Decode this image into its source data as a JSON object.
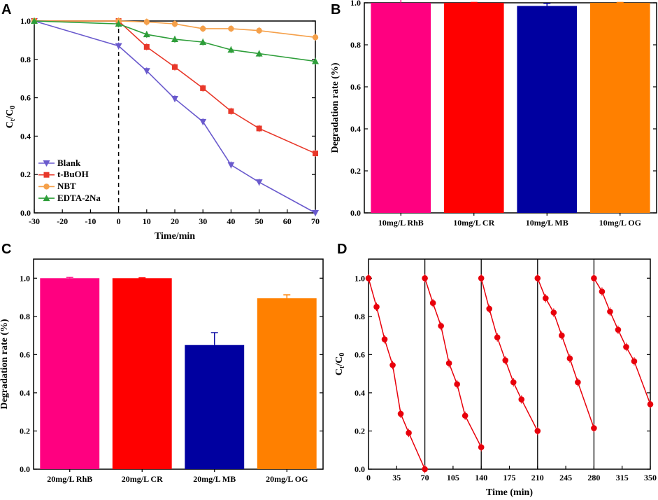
{
  "chart_data": [
    {
      "panel": "A",
      "type": "line",
      "xlabel": "Time/min",
      "ylabel": "Ct/C0",
      "ylabel_main": "C",
      "ylabel_sub1": "t",
      "ylabel_slash": "/C",
      "ylabel_sub2": "0",
      "xlim": [
        -30,
        70
      ],
      "ylim": [
        0,
        1.0
      ],
      "xticks": [
        "-30",
        "-20",
        "-10",
        "0",
        "10",
        "20",
        "30",
        "40",
        "50",
        "60",
        "70"
      ],
      "yticks": [
        "0.0",
        "0.2",
        "0.4",
        "0.6",
        "0.8",
        "1.0"
      ],
      "legend_position": "bottom-left",
      "x": [
        -30,
        0,
        10,
        20,
        30,
        40,
        50,
        70
      ],
      "series": [
        {
          "name": "Blank",
          "color": "#6a5acd",
          "marker": "triangle-down",
          "values": [
            1.0,
            0.87,
            0.74,
            0.595,
            0.475,
            0.25,
            0.16,
            0.0
          ]
        },
        {
          "name": "t-BuOH",
          "color": "#e8382a",
          "marker": "square",
          "values": [
            1.0,
            1.0,
            0.865,
            0.76,
            0.65,
            0.53,
            0.44,
            0.31
          ]
        },
        {
          "name": "NBT",
          "color": "#f5a04a",
          "marker": "circle",
          "values": [
            1.0,
            1.0,
            0.995,
            0.985,
            0.96,
            0.96,
            0.95,
            0.915
          ]
        },
        {
          "name": "EDTA-2Na",
          "color": "#2e9e3a",
          "marker": "triangle-up",
          "values": [
            1.0,
            0.985,
            0.93,
            0.905,
            0.89,
            0.85,
            0.83,
            0.79
          ]
        }
      ],
      "vline_x": 0
    },
    {
      "panel": "B",
      "type": "bar",
      "ylabel": "Degradation rate (%)",
      "ylim": [
        0,
        1.0
      ],
      "yticks": [
        "0.0",
        "0.2",
        "0.4",
        "0.6",
        "0.8",
        "1.0"
      ],
      "categories": [
        "10mg/L RhB",
        "10mg/L CR",
        "10mg/L MB",
        "10mg/L OG"
      ],
      "values": [
        1.0,
        1.0,
        0.985,
        1.0
      ],
      "errors": [
        0.025,
        0.002,
        0.012,
        0.002
      ],
      "colors": [
        "#ff0080",
        "#ff0000",
        "#0000a0",
        "#ff8000"
      ]
    },
    {
      "panel": "C",
      "type": "bar",
      "ylabel": "Degradation rate (%)",
      "ylim": [
        0,
        1.1
      ],
      "yticks": [
        "0.0",
        "0.2",
        "0.4",
        "0.6",
        "0.8",
        "1.0"
      ],
      "categories": [
        "20mg/L RhB",
        "20mg/L CR",
        "20mg/L MB",
        "20mg/L OG"
      ],
      "values": [
        1.0,
        1.0,
        0.65,
        0.895
      ],
      "errors": [
        0.004,
        0.002,
        0.065,
        0.018
      ],
      "colors": [
        "#ff0080",
        "#ff0000",
        "#0000a0",
        "#ff8000"
      ]
    },
    {
      "panel": "D",
      "type": "line",
      "xlabel": "Time (min)",
      "ylabel": "Ct/C0",
      "ylabel_main": "C",
      "ylabel_sub1": "t",
      "ylabel_slash": "/C",
      "ylabel_sub2": "0",
      "xlim": [
        0,
        350
      ],
      "ylim": [
        0,
        1.1
      ],
      "xticks": [
        "0",
        "35",
        "70",
        "105",
        "140",
        "175",
        "210",
        "245",
        "280",
        "315",
        "350"
      ],
      "yticks": [
        "0.0",
        "0.2",
        "0.4",
        "0.6",
        "0.8",
        "1.0"
      ],
      "vlines": [
        70,
        140,
        210,
        280
      ],
      "color": "#e8000b",
      "cycles": [
        {
          "x": [
            0,
            10,
            20,
            30,
            40,
            50,
            70
          ],
          "y": [
            1.0,
            0.85,
            0.68,
            0.545,
            0.29,
            0.19,
            0.0
          ]
        },
        {
          "x": [
            70,
            80,
            90,
            100,
            110,
            120,
            140
          ],
          "y": [
            1.0,
            0.87,
            0.75,
            0.555,
            0.445,
            0.28,
            0.115
          ]
        },
        {
          "x": [
            140,
            150,
            160,
            170,
            180,
            190,
            210
          ],
          "y": [
            1.0,
            0.84,
            0.69,
            0.57,
            0.455,
            0.365,
            0.2
          ]
        },
        {
          "x": [
            210,
            220,
            230,
            240,
            250,
            260,
            280
          ],
          "y": [
            1.0,
            0.895,
            0.82,
            0.7,
            0.58,
            0.455,
            0.215
          ]
        },
        {
          "x": [
            280,
            290,
            300,
            310,
            320,
            330,
            350
          ],
          "y": [
            1.0,
            0.93,
            0.825,
            0.73,
            0.64,
            0.565,
            0.34
          ]
        }
      ]
    }
  ]
}
